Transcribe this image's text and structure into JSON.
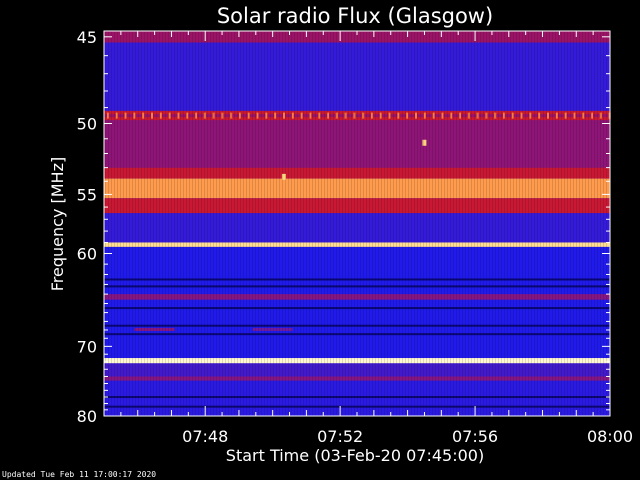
{
  "chart_data": {
    "type": "heatmap",
    "title": "Solar radio Flux (Glasgow)",
    "xlabel": "Start Time (03-Feb-20 07:45:00)",
    "ylabel": "Frequency [MHz]",
    "x_range": [
      "07:45",
      "08:00"
    ],
    "x_ticks": [
      "07:48",
      "07:52",
      "07:56",
      "08:00"
    ],
    "y_range_mhz": [
      44.7,
      80
    ],
    "y_ticks": [
      45,
      50,
      55,
      60,
      70,
      80
    ],
    "y_scale": "reciprocal",
    "colormap": [
      "#000080",
      "#1a1af0",
      "#6a1aa8",
      "#b0104a",
      "#ff2a00",
      "#ffd070",
      "#ffffe8"
    ],
    "bands": [
      {
        "f_low": 44.7,
        "f_high": 45.3,
        "level": 0.45
      },
      {
        "f_low": 45.3,
        "f_high": 49.2,
        "level": 0.22
      },
      {
        "f_low": 49.2,
        "f_high": 49.8,
        "level": 0.55
      },
      {
        "f_low": 49.8,
        "f_high": 53.0,
        "level": 0.42
      },
      {
        "f_low": 53.0,
        "f_high": 53.8,
        "level": 0.55
      },
      {
        "f_low": 53.8,
        "f_high": 55.3,
        "level": 0.78
      },
      {
        "f_low": 55.3,
        "f_high": 56.5,
        "level": 0.55
      },
      {
        "f_low": 56.5,
        "f_high": 59.0,
        "level": 0.22
      },
      {
        "f_low": 59.0,
        "f_high": 59.4,
        "level": 0.88
      },
      {
        "f_low": 59.4,
        "f_high": 64.0,
        "level": 0.18
      },
      {
        "f_low": 64.0,
        "f_high": 64.6,
        "level": 0.4
      },
      {
        "f_low": 64.6,
        "f_high": 71.5,
        "level": 0.18
      },
      {
        "f_low": 71.5,
        "f_high": 72.2,
        "level": 0.97
      },
      {
        "f_low": 72.2,
        "f_high": 74.0,
        "level": 0.25
      },
      {
        "f_low": 74.0,
        "f_high": 74.6,
        "level": 0.4
      },
      {
        "f_low": 74.6,
        "f_high": 80.0,
        "level": 0.2
      }
    ],
    "dark_lines_mhz": [
      62.5,
      63.2,
      65.5,
      67.5,
      68.5,
      77.0,
      78.5
    ],
    "comb_line": {
      "f_mhz": 49.5,
      "level": 0.75
    },
    "features": [
      {
        "time": "07:54:30",
        "f_mhz": 51.2,
        "level": 0.85
      },
      {
        "time": "07:50:20",
        "f_mhz": 53.6,
        "level": 0.85
      },
      {
        "time": "07:46:30",
        "f_mhz": 68.0,
        "level": 0.4
      },
      {
        "time": "07:50:00",
        "f_mhz": 68.0,
        "level": 0.35
      }
    ]
  },
  "footer": {
    "updated": "Updated Tue Feb 11 17:00:17 2020"
  }
}
